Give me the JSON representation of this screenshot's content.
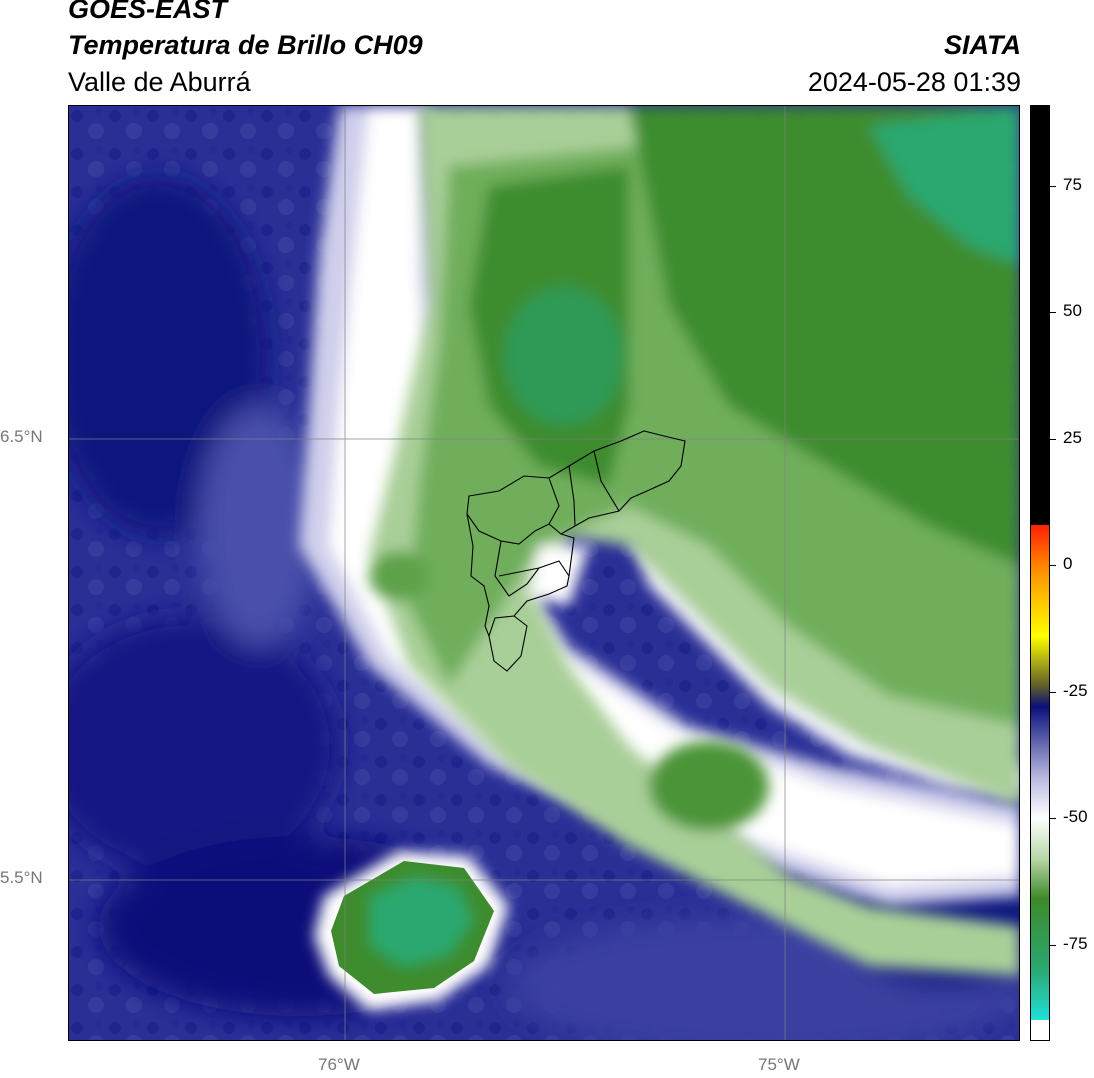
{
  "header": {
    "satellite": "GOES-EAST",
    "variable": "Temperatura de Brillo CH09",
    "region": "Valle de Aburrá",
    "organization": "SIATA",
    "timestamp": "2024-05-28 01:39"
  },
  "map": {
    "lat_labels": [
      "6.5°N",
      "5.5°N"
    ],
    "lon_labels": [
      "76°W",
      "75°W"
    ],
    "gridlines": true
  },
  "colorbar": {
    "ticks": [
      "75",
      "50",
      "25",
      "0",
      "-25",
      "-50",
      "-75"
    ],
    "tick_values": [
      75,
      50,
      25,
      0,
      -25,
      -50,
      -75
    ],
    "range": [
      -94,
      91
    ],
    "colors": {
      "high": "#000000",
      "warm_red": "#ff2000",
      "orange": "#ff9a00",
      "yellow": "#ffff00",
      "olive": "#5c5c2a",
      "navy": "#0a107a",
      "lavender": "#b8b8e0",
      "white": "#ffffff",
      "green_light": "#b8d8a8",
      "green": "#3d8a2a",
      "teal": "#2aa870",
      "cyan": "#20e0d8"
    }
  }
}
